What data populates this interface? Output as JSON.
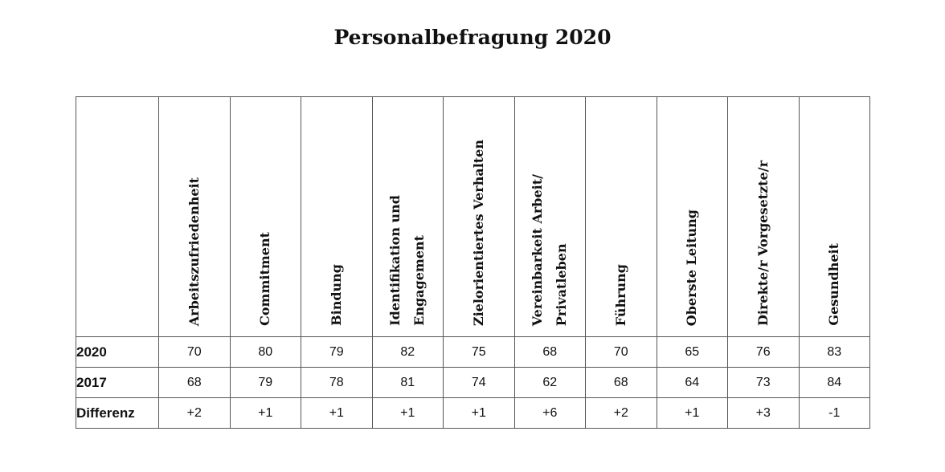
{
  "chart_data": {
    "type": "table",
    "title": "Personalbefragung 2020",
    "columns": [
      "Arbeitszufriedenheit",
      "Commitment",
      "Bindung",
      "Identifikation und\nEngagement",
      "Zielorientiertes Verhalten",
      "Vereinbarkeit Arbeit/\nPrivatleben",
      "Führung",
      "Oberste Leitung",
      "Direkte/r Vorgesetzte/r",
      "Gesundheit"
    ],
    "rows": [
      {
        "label": "2020",
        "values": [
          "70",
          "80",
          "79",
          "82",
          "75",
          "68",
          "70",
          "65",
          "76",
          "83"
        ]
      },
      {
        "label": "2017",
        "values": [
          "68",
          "79",
          "78",
          "81",
          "74",
          "62",
          "68",
          "64",
          "73",
          "84"
        ]
      },
      {
        "label": "Differenz",
        "values": [
          "+2",
          "+1",
          "+1",
          "+1",
          "+1",
          "+6",
          "+2",
          "+1",
          "+3",
          "-1"
        ]
      }
    ]
  }
}
